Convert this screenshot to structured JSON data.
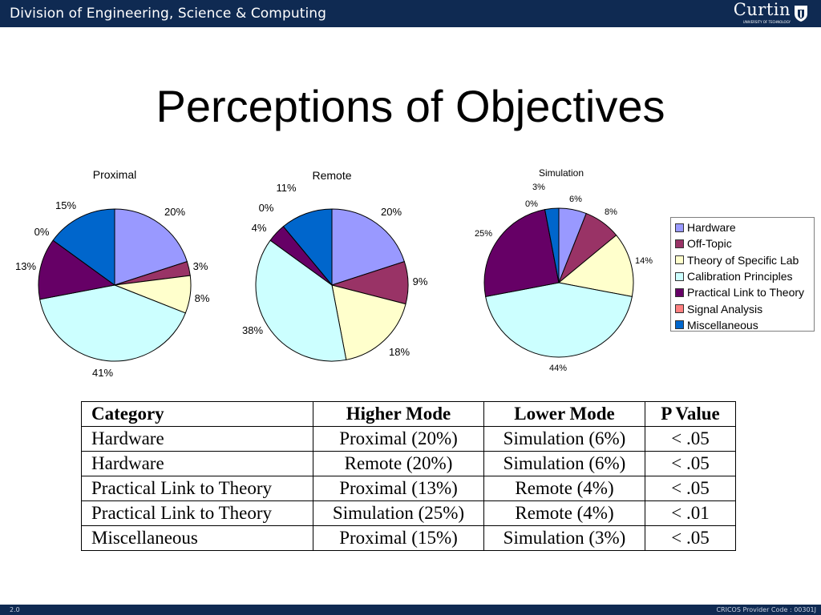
{
  "header": {
    "division": "Division of Engineering, Science & Computing",
    "logo_text": "Curtin",
    "logo_subtext": "UNIVERSITY OF TECHNOLOGY"
  },
  "slide": {
    "title": "Perceptions of Objectives"
  },
  "colors": {
    "header_bg": "#0f2a52",
    "categories": [
      "#9999ff",
      "#993366",
      "#ffffcc",
      "#ccffff",
      "#660066",
      "#ff8080",
      "#0066cc"
    ]
  },
  "chart_data": [
    {
      "type": "pie",
      "title": "Proximal",
      "categories": [
        "Hardware",
        "Off-Topic",
        "Theory of Specific Lab",
        "Calibration Principles",
        "Practical Link to Theory",
        "Signal Analysis",
        "Miscellaneous"
      ],
      "values": [
        20,
        3,
        8,
        41,
        13,
        0,
        15
      ],
      "labels": [
        "20%",
        "3%",
        "8%",
        "41%",
        "13%",
        "0%",
        "15%"
      ]
    },
    {
      "type": "pie",
      "title": "Remote",
      "categories": [
        "Hardware",
        "Off-Topic",
        "Theory of Specific Lab",
        "Calibration Principles",
        "Practical Link to Theory",
        "Signal Analysis",
        "Miscellaneous"
      ],
      "values": [
        20,
        9,
        18,
        38,
        4,
        0,
        11
      ],
      "labels": [
        "20%",
        "9%",
        "18%",
        "38%",
        "4%",
        "0%",
        "11%"
      ]
    },
    {
      "type": "pie",
      "title": "Simulation",
      "categories": [
        "Hardware",
        "Off-Topic",
        "Theory of Specific Lab",
        "Calibration Principles",
        "Practical Link to Theory",
        "Signal Analysis",
        "Miscellaneous"
      ],
      "values": [
        6,
        8,
        14,
        44,
        25,
        0,
        3
      ],
      "labels": [
        "6%",
        "8%",
        "14%",
        "44%",
        "25%",
        "0%",
        "3%"
      ]
    }
  ],
  "legend": [
    "Hardware",
    "Off-Topic",
    "Theory of Specific Lab",
    "Calibration Principles",
    "Practical Link to Theory",
    "Signal Analysis",
    "Miscellaneous"
  ],
  "table": {
    "headers": [
      "Category",
      "Higher Mode",
      "Lower Mode",
      "P Value"
    ],
    "rows": [
      [
        "Hardware",
        "Proximal (20%)",
        "Simulation (6%)",
        "< .05"
      ],
      [
        "Hardware",
        "Remote (20%)",
        "Simulation (6%)",
        "< .05"
      ],
      [
        "Practical Link to Theory",
        "Proximal (13%)",
        "Remote (4%)",
        "< .05"
      ],
      [
        "Practical Link to Theory",
        "Simulation (25%)",
        "Remote (4%)",
        "< .01"
      ],
      [
        "Miscellaneous",
        "Proximal (15%)",
        "Simulation (3%)",
        "< .05"
      ]
    ]
  },
  "footer": {
    "slide_number": "2.0",
    "cricos": "CRICOS Provider Code : 00301J"
  }
}
